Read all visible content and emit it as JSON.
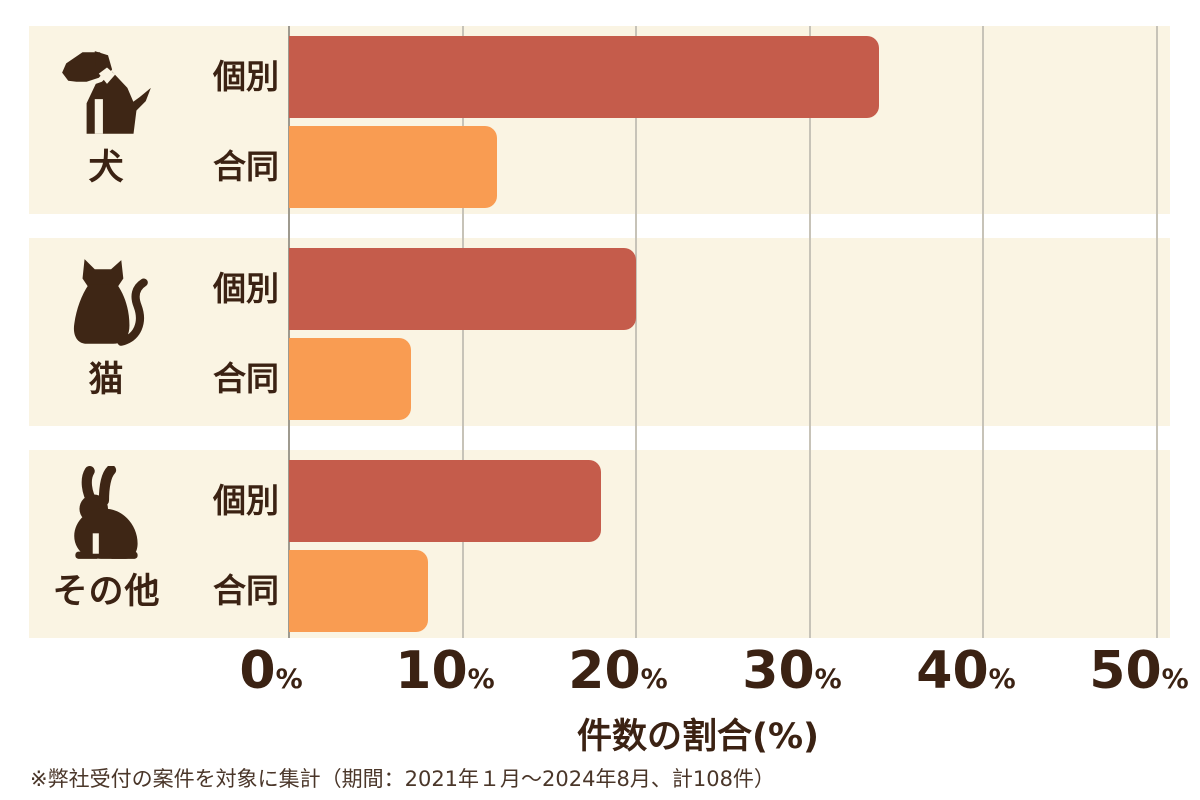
{
  "chart_data": {
    "type": "bar",
    "orientation": "horizontal",
    "title": "",
    "xlabel": "件数の割合(%)",
    "x_unit": "%",
    "x_ticks": [
      "0",
      "10",
      "20",
      "30",
      "40",
      "50"
    ],
    "xlim": [
      0,
      50
    ],
    "grid": true,
    "legend_position": "none",
    "series_names": [
      "個別",
      "合同"
    ],
    "groups": [
      {
        "category": "犬",
        "icon": "dog-icon",
        "series": [
          {
            "name": "個別",
            "value": 34
          },
          {
            "name": "合同",
            "value": 12
          }
        ]
      },
      {
        "category": "猫",
        "icon": "cat-icon",
        "series": [
          {
            "name": "個別",
            "value": 20
          },
          {
            "name": "合同",
            "value": 7
          }
        ]
      },
      {
        "category": "その他",
        "icon": "rabbit-icon",
        "series": [
          {
            "name": "個別",
            "value": 18
          },
          {
            "name": "合同",
            "value": 8
          }
        ]
      }
    ],
    "colors": {
      "individual_bar": "#C55C4B",
      "joint_bar": "#F99C52"
    }
  },
  "footnote": "※弊社受付の案件を対象に集計（期間：2021年１月～2024年8月、計108件）",
  "theme": {
    "page_bg": "#FFFFFF",
    "panel_bg": "#FAF4E3",
    "text": "#3B2213",
    "icon": "#3E2615",
    "gridline": "#C7C3B8",
    "axis_line": "#9E9A8F"
  }
}
